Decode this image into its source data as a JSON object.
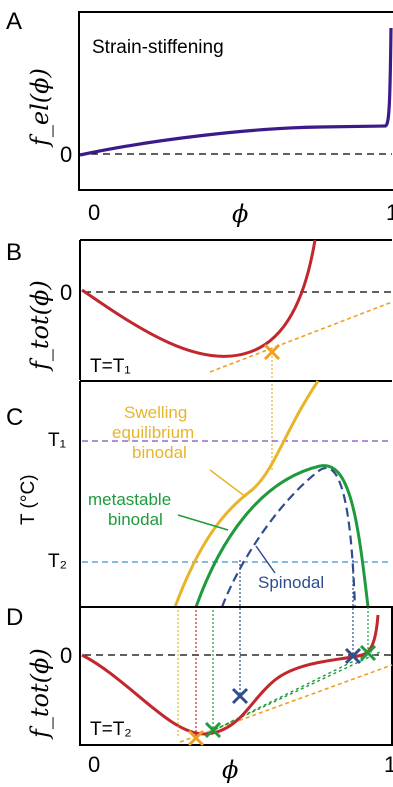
{
  "colors": {
    "elastic": "#3b1a8a",
    "ftot": "#c1272d",
    "swelling": "#e8b52a",
    "metastable": "#1f9a3c",
    "spinodal": "#2f4d8f",
    "t1": "#7a4fc0",
    "t2": "#3a8fcf",
    "zero": "#000000",
    "orange_mark": "#f0a020"
  },
  "panel_labels": [
    "A",
    "B",
    "C",
    "D"
  ],
  "panelA": {
    "ylabel": "f_el(ϕ)",
    "title": "Strain-stiffening",
    "zero_tick": "0",
    "x_ticks": [
      "0",
      "1"
    ],
    "xlabel": "ϕ"
  },
  "panelB": {
    "ylabel": "f_tot(ϕ)",
    "zero_tick": "0",
    "temp_label": "T=T₁"
  },
  "panelC": {
    "ylabel": "T (°C)",
    "t1_label": "T₁",
    "t2_label": "T₂",
    "swelling_label": [
      "Swelling",
      "equilibrium",
      "binodal"
    ],
    "metastable_label": [
      "metastable",
      "binodal"
    ],
    "spinodal_label": "Spinodal"
  },
  "panelD": {
    "ylabel": "f_tot(ϕ)",
    "zero_tick": "0",
    "temp_label": "T=T₂",
    "x_ticks": [
      "0",
      "1"
    ],
    "xlabel": "ϕ"
  },
  "chart_data": [
    {
      "panel": "A",
      "type": "line",
      "x": [
        0,
        0.2,
        0.4,
        0.6,
        0.8,
        0.95,
        0.99,
        1.0
      ],
      "series": [
        {
          "values": [
            0.0,
            0.05,
            0.1,
            0.14,
            0.17,
            0.19,
            0.25,
            0.9
          ]
        }
      ],
      "title": "Strain-stiffening",
      "xlabel": "ϕ",
      "ylabel": "f_el(ϕ)",
      "xlim": [
        0,
        1
      ],
      "reference_line": 0
    },
    {
      "panel": "B",
      "type": "line",
      "x": [
        0,
        0.1,
        0.2,
        0.3,
        0.4,
        0.5,
        0.6,
        0.7,
        0.75,
        0.8
      ],
      "series": [
        {
          "values": [
            0.0,
            -0.18,
            -0.32,
            -0.43,
            -0.48,
            -0.43,
            -0.25,
            0.05,
            0.3,
            0.8
          ]
        }
      ],
      "ylabel": "f_tot(ϕ)",
      "temperature": "T=T₁",
      "xlim": [
        0,
        1
      ],
      "reference_line": 0,
      "tangent": {
        "from": [
          0.45,
          -0.49
        ],
        "to": [
          1.0,
          -0.12
        ]
      },
      "markers": [
        {
          "x": 0.49,
          "y": -0.45
        }
      ]
    },
    {
      "panel": "C",
      "type": "line",
      "ylabel": "T (°C)",
      "xlim": [
        0,
        1
      ],
      "ylim": [
        0,
        1
      ],
      "hlines": [
        {
          "label": "T₁",
          "y": 0.72
        },
        {
          "label": "T₂",
          "y": 0.19
        }
      ],
      "series": [
        {
          "name": "Swelling equilibrium binodal",
          "x": [
            0.3,
            0.36,
            0.43,
            0.5,
            0.56,
            0.62
          ],
          "values": [
            0.0,
            0.3,
            0.5,
            0.68,
            0.85,
            1.0
          ]
        },
        {
          "name": "metastable binodal",
          "x": [
            0.42,
            0.5,
            0.6,
            0.7,
            0.78,
            0.84,
            0.88
          ],
          "values": [
            0.0,
            0.32,
            0.52,
            0.62,
            0.58,
            0.36,
            0.0
          ]
        },
        {
          "name": "Spinodal",
          "x": [
            0.48,
            0.55,
            0.65,
            0.74,
            0.81,
            0.84
          ],
          "values": [
            0.0,
            0.25,
            0.45,
            0.58,
            0.4,
            0.0
          ]
        }
      ]
    },
    {
      "panel": "D",
      "type": "line",
      "x": [
        0,
        0.1,
        0.2,
        0.32,
        0.4,
        0.5,
        0.6,
        0.7,
        0.82,
        0.88,
        0.92
      ],
      "series": [
        {
          "values": [
            0.0,
            -0.28,
            -0.52,
            -0.62,
            -0.55,
            -0.3,
            -0.12,
            -0.05,
            0.0,
            0.02,
            0.3
          ]
        }
      ],
      "ylabel": "f_tot(ϕ)",
      "temperature": "T=T₂",
      "xlabel": "ϕ",
      "xlim": [
        0,
        1
      ],
      "reference_line": 0,
      "tangents": [
        {
          "color": "swelling",
          "from": [
            0.3,
            -0.65
          ],
          "to": [
            1.0,
            -0.18
          ]
        },
        {
          "color": "metastable",
          "from": [
            0.4,
            -0.56
          ],
          "to": [
            0.9,
            0.02
          ]
        },
        {
          "color": "metastable",
          "from": [
            0.42,
            -0.55
          ],
          "to": [
            0.92,
            0.02
          ]
        }
      ],
      "markers": [
        {
          "x": 0.33,
          "y": -0.63
        },
        {
          "x": 0.42,
          "y": -0.56
        },
        {
          "x": 0.48,
          "y": -0.38
        },
        {
          "x": 0.82,
          "y": 0.0
        },
        {
          "x": 0.87,
          "y": 0.02
        }
      ]
    }
  ]
}
